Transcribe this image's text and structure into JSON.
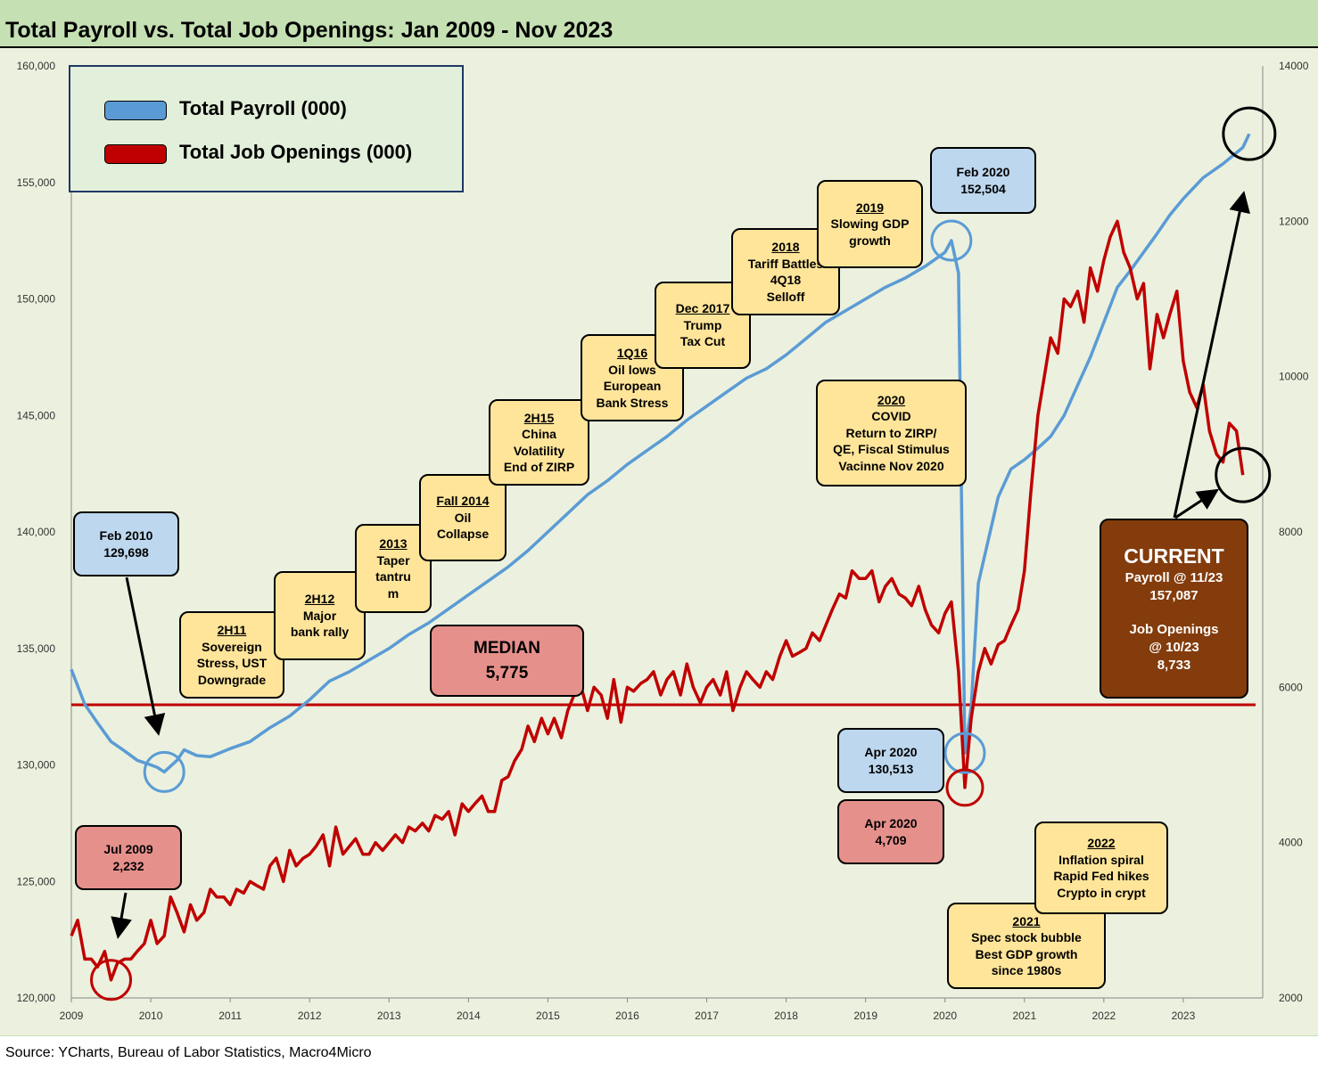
{
  "title": "Total Payroll vs. Total Job Openings: Jan 2009 - Nov 2023",
  "source": "Source: YCharts, Bureau of Labor Statistics, Macro4Micro",
  "colors": {
    "payroll": "#5b9bd5",
    "openings": "#c00000",
    "median": "#c00000",
    "background": "#ebf1de",
    "header": "#c5e0b3"
  },
  "legend": {
    "payroll": "Total Payroll (000)",
    "openings": "Total Job Openings (000)"
  },
  "annotations": {
    "a2h11": {
      "head": "2H11",
      "l1": "Sovereign",
      "l2": "Stress, UST",
      "l3": "Downgrade"
    },
    "a2h12": {
      "head": "2H12",
      "l1": "Major",
      "l2": "bank rally"
    },
    "a2013": {
      "head": "2013",
      "l1": "Taper",
      "l2": "tantru",
      "l3": "m"
    },
    "afall2014": {
      "head": "Fall 2014",
      "l1": "Oil",
      "l2": "Collapse"
    },
    "a2h15": {
      "head": "2H15",
      "l1": "China",
      "l2": "Volatility",
      "l3": "End of ZIRP"
    },
    "a1q16": {
      "head": "1Q16",
      "l1": "Oil lows",
      "l2": "European",
      "l3": "Bank Stress"
    },
    "adec2017": {
      "head": "Dec 2017",
      "l1": "Trump",
      "l2": "Tax Cut"
    },
    "a2018": {
      "head": "2018",
      "l1": "Tariff Battles",
      "l2": "4Q18",
      "l3": "Selloff"
    },
    "a2019": {
      "head": "2019",
      "l1": "Slowing GDP",
      "l2": "growth"
    },
    "a2020": {
      "head": "2020",
      "l1": "COVID",
      "l2": "Return to ZIRP/",
      "l3": "QE, Fiscal Stimulus",
      "l4": "Vacinne Nov 2020"
    },
    "a2021": {
      "head": "2021",
      "l1": "Spec stock bubble",
      "l2": "Best GDP growth",
      "l3": "since 1980s"
    },
    "a2022": {
      "head": "2022",
      "l1": "Inflation spiral",
      "l2": "Rapid Fed hikes",
      "l3": "Crypto in crypt"
    },
    "feb2010": {
      "l1": "Feb 2010",
      "l2": "129,698"
    },
    "jul2009": {
      "l1": "Jul 2009",
      "l2": "2,232"
    },
    "feb2020": {
      "l1": "Feb 2020",
      "l2": "152,504"
    },
    "apr2020p": {
      "l1": "Apr 2020",
      "l2": "130,513"
    },
    "apr2020o": {
      "l1": "Apr 2020",
      "l2": "4,709"
    },
    "median": {
      "l1": "MEDIAN",
      "l2": "5,775"
    },
    "current": {
      "l1": "CURRENT",
      "l2": "Payroll @ 11/23",
      "l3": "157,087",
      "l4": "Job Openings",
      "l5": "@ 10/23",
      "l6": "8,733"
    }
  },
  "chart_data": {
    "type": "line",
    "title": "Total Payroll vs. Total Job Openings: Jan 2009 - Nov 2023",
    "x_range": [
      2009.0,
      2024.0
    ],
    "x_ticks": [
      "2009",
      "2010",
      "2011",
      "2012",
      "2013",
      "2014",
      "2015",
      "2016",
      "2017",
      "2018",
      "2019",
      "2020",
      "2021",
      "2022",
      "2023"
    ],
    "y_left": {
      "range": [
        120000,
        160000
      ],
      "ticks": [
        "120,000",
        "125,000",
        "130,000",
        "135,000",
        "140,000",
        "145,000",
        "150,000",
        "155,000",
        "160,000"
      ]
    },
    "y_right": {
      "range": [
        2000,
        14000
      ],
      "ticks": [
        "2000",
        "4000",
        "6000",
        "8000",
        "10000",
        "12000",
        "14000"
      ]
    },
    "median_openings": 5775,
    "series": [
      {
        "name": "Total Payroll (000)",
        "axis": "left",
        "points": [
          [
            2009.0,
            134100
          ],
          [
            2009.17,
            132600
          ],
          [
            2009.33,
            131800
          ],
          [
            2009.5,
            131000
          ],
          [
            2009.67,
            130600
          ],
          [
            2009.83,
            130200
          ],
          [
            2010.0,
            130000
          ],
          [
            2010.08,
            129900
          ],
          [
            2010.17,
            129700
          ],
          [
            2010.33,
            130200
          ],
          [
            2010.42,
            130650
          ],
          [
            2010.58,
            130400
          ],
          [
            2010.75,
            130350
          ],
          [
            2011.0,
            130700
          ],
          [
            2011.25,
            131000
          ],
          [
            2011.5,
            131600
          ],
          [
            2011.75,
            132100
          ],
          [
            2012.0,
            132800
          ],
          [
            2012.25,
            133600
          ],
          [
            2012.5,
            134000
          ],
          [
            2012.75,
            134500
          ],
          [
            2013.0,
            135000
          ],
          [
            2013.25,
            135600
          ],
          [
            2013.5,
            136100
          ],
          [
            2013.75,
            136700
          ],
          [
            2014.0,
            137300
          ],
          [
            2014.25,
            137900
          ],
          [
            2014.5,
            138500
          ],
          [
            2014.75,
            139200
          ],
          [
            2015.0,
            140000
          ],
          [
            2015.25,
            140800
          ],
          [
            2015.5,
            141600
          ],
          [
            2015.75,
            142200
          ],
          [
            2016.0,
            142900
          ],
          [
            2016.25,
            143500
          ],
          [
            2016.5,
            144100
          ],
          [
            2016.75,
            144800
          ],
          [
            2017.0,
            145400
          ],
          [
            2017.25,
            146000
          ],
          [
            2017.5,
            146600
          ],
          [
            2017.75,
            147000
          ],
          [
            2018.0,
            147600
          ],
          [
            2018.25,
            148300
          ],
          [
            2018.5,
            149000
          ],
          [
            2018.75,
            149500
          ],
          [
            2019.0,
            150000
          ],
          [
            2019.25,
            150500
          ],
          [
            2019.5,
            150900
          ],
          [
            2019.75,
            151400
          ],
          [
            2020.0,
            152000
          ],
          [
            2020.08,
            152504
          ],
          [
            2020.17,
            151100
          ],
          [
            2020.25,
            130513
          ],
          [
            2020.33,
            132500
          ],
          [
            2020.42,
            137800
          ],
          [
            2020.5,
            139000
          ],
          [
            2020.67,
            141500
          ],
          [
            2020.83,
            142700
          ],
          [
            2021.0,
            143100
          ],
          [
            2021.17,
            143600
          ],
          [
            2021.33,
            144100
          ],
          [
            2021.5,
            145000
          ],
          [
            2021.67,
            146300
          ],
          [
            2021.83,
            147500
          ],
          [
            2022.0,
            149000
          ],
          [
            2022.17,
            150500
          ],
          [
            2022.33,
            151200
          ],
          [
            2022.5,
            152000
          ],
          [
            2022.67,
            152800
          ],
          [
            2022.83,
            153600
          ],
          [
            2023.0,
            154300
          ],
          [
            2023.25,
            155200
          ],
          [
            2023.5,
            155800
          ],
          [
            2023.75,
            156500
          ],
          [
            2023.83,
            157087
          ]
        ]
      },
      {
        "name": "Total Job Openings (000)",
        "axis": "right",
        "points": [
          [
            2009.0,
            2800
          ],
          [
            2009.08,
            3000
          ],
          [
            2009.17,
            2500
          ],
          [
            2009.25,
            2500
          ],
          [
            2009.33,
            2400
          ],
          [
            2009.42,
            2600
          ],
          [
            2009.5,
            2232
          ],
          [
            2009.58,
            2450
          ],
          [
            2009.67,
            2500
          ],
          [
            2009.75,
            2500
          ],
          [
            2009.83,
            2600
          ],
          [
            2009.92,
            2700
          ],
          [
            2010.0,
            3000
          ],
          [
            2010.08,
            2700
          ],
          [
            2010.17,
            2800
          ],
          [
            2010.25,
            3300
          ],
          [
            2010.33,
            3100
          ],
          [
            2010.42,
            2850
          ],
          [
            2010.5,
            3200
          ],
          [
            2010.58,
            3000
          ],
          [
            2010.67,
            3100
          ],
          [
            2010.75,
            3400
          ],
          [
            2010.83,
            3300
          ],
          [
            2010.92,
            3300
          ],
          [
            2011.0,
            3200
          ],
          [
            2011.08,
            3400
          ],
          [
            2011.17,
            3350
          ],
          [
            2011.25,
            3500
          ],
          [
            2011.33,
            3450
          ],
          [
            2011.42,
            3400
          ],
          [
            2011.5,
            3700
          ],
          [
            2011.58,
            3800
          ],
          [
            2011.67,
            3500
          ],
          [
            2011.75,
            3900
          ],
          [
            2011.83,
            3700
          ],
          [
            2011.92,
            3800
          ],
          [
            2012.0,
            3850
          ],
          [
            2012.08,
            3950
          ],
          [
            2012.17,
            4100
          ],
          [
            2012.25,
            3700
          ],
          [
            2012.33,
            4200
          ],
          [
            2012.42,
            3850
          ],
          [
            2012.5,
            3950
          ],
          [
            2012.58,
            4050
          ],
          [
            2012.67,
            3850
          ],
          [
            2012.75,
            3850
          ],
          [
            2012.83,
            4000
          ],
          [
            2012.92,
            3900
          ],
          [
            2013.0,
            4000
          ],
          [
            2013.08,
            4100
          ],
          [
            2013.17,
            4000
          ],
          [
            2013.25,
            4200
          ],
          [
            2013.33,
            4150
          ],
          [
            2013.42,
            4250
          ],
          [
            2013.5,
            4150
          ],
          [
            2013.58,
            4350
          ],
          [
            2013.67,
            4300
          ],
          [
            2013.75,
            4400
          ],
          [
            2013.83,
            4100
          ],
          [
            2013.92,
            4500
          ],
          [
            2014.0,
            4400
          ],
          [
            2014.08,
            4500
          ],
          [
            2014.17,
            4600
          ],
          [
            2014.25,
            4400
          ],
          [
            2014.33,
            4400
          ],
          [
            2014.42,
            4800
          ],
          [
            2014.5,
            4850
          ],
          [
            2014.58,
            5050
          ],
          [
            2014.67,
            5200
          ],
          [
            2014.75,
            5500
          ],
          [
            2014.83,
            5300
          ],
          [
            2014.92,
            5600
          ],
          [
            2015.0,
            5400
          ],
          [
            2015.08,
            5600
          ],
          [
            2015.17,
            5350
          ],
          [
            2015.25,
            5700
          ],
          [
            2015.33,
            5900
          ],
          [
            2015.42,
            6000
          ],
          [
            2015.5,
            5700
          ],
          [
            2015.58,
            6000
          ],
          [
            2015.67,
            5900
          ],
          [
            2015.75,
            5600
          ],
          [
            2015.83,
            6100
          ],
          [
            2015.92,
            5550
          ],
          [
            2016.0,
            6000
          ],
          [
            2016.08,
            5950
          ],
          [
            2016.17,
            6050
          ],
          [
            2016.25,
            6100
          ],
          [
            2016.33,
            6200
          ],
          [
            2016.42,
            5900
          ],
          [
            2016.5,
            6100
          ],
          [
            2016.58,
            6200
          ],
          [
            2016.67,
            5900
          ],
          [
            2016.75,
            6300
          ],
          [
            2016.83,
            6000
          ],
          [
            2016.92,
            5800
          ],
          [
            2017.0,
            6000
          ],
          [
            2017.08,
            6100
          ],
          [
            2017.17,
            5900
          ],
          [
            2017.25,
            6200
          ],
          [
            2017.33,
            5700
          ],
          [
            2017.42,
            6000
          ],
          [
            2017.5,
            6200
          ],
          [
            2017.58,
            6100
          ],
          [
            2017.67,
            6000
          ],
          [
            2017.75,
            6200
          ],
          [
            2017.83,
            6100
          ],
          [
            2017.92,
            6400
          ],
          [
            2018.0,
            6600
          ],
          [
            2018.08,
            6400
          ],
          [
            2018.17,
            6450
          ],
          [
            2018.25,
            6500
          ],
          [
            2018.33,
            6700
          ],
          [
            2018.42,
            6600
          ],
          [
            2018.5,
            6800
          ],
          [
            2018.58,
            7000
          ],
          [
            2018.67,
            7200
          ],
          [
            2018.75,
            7150
          ],
          [
            2018.83,
            7500
          ],
          [
            2018.92,
            7400
          ],
          [
            2019.0,
            7400
          ],
          [
            2019.08,
            7500
          ],
          [
            2019.17,
            7100
          ],
          [
            2019.25,
            7300
          ],
          [
            2019.33,
            7400
          ],
          [
            2019.42,
            7200
          ],
          [
            2019.5,
            7150
          ],
          [
            2019.58,
            7050
          ],
          [
            2019.67,
            7300
          ],
          [
            2019.75,
            7000
          ],
          [
            2019.83,
            6800
          ],
          [
            2019.92,
            6700
          ],
          [
            2020.0,
            6950
          ],
          [
            2020.08,
            7100
          ],
          [
            2020.17,
            6200
          ],
          [
            2020.25,
            4709
          ],
          [
            2020.33,
            5600
          ],
          [
            2020.42,
            6200
          ],
          [
            2020.5,
            6500
          ],
          [
            2020.58,
            6300
          ],
          [
            2020.67,
            6550
          ],
          [
            2020.75,
            6600
          ],
          [
            2020.83,
            6800
          ],
          [
            2020.92,
            7000
          ],
          [
            2021.0,
            7500
          ],
          [
            2021.08,
            8500
          ],
          [
            2021.17,
            9500
          ],
          [
            2021.25,
            10000
          ],
          [
            2021.33,
            10500
          ],
          [
            2021.42,
            10300
          ],
          [
            2021.5,
            11000
          ],
          [
            2021.58,
            10900
          ],
          [
            2021.67,
            11100
          ],
          [
            2021.75,
            10700
          ],
          [
            2021.83,
            11400
          ],
          [
            2021.92,
            11100
          ],
          [
            2022.0,
            11500
          ],
          [
            2022.08,
            11800
          ],
          [
            2022.17,
            12000
          ],
          [
            2022.25,
            11600
          ],
          [
            2022.33,
            11400
          ],
          [
            2022.42,
            11000
          ],
          [
            2022.5,
            11200
          ],
          [
            2022.58,
            10100
          ],
          [
            2022.67,
            10800
          ],
          [
            2022.75,
            10500
          ],
          [
            2022.83,
            10800
          ],
          [
            2022.92,
            11100
          ],
          [
            2023.0,
            10200
          ],
          [
            2023.08,
            9800
          ],
          [
            2023.17,
            9600
          ],
          [
            2023.25,
            9900
          ],
          [
            2023.33,
            9300
          ],
          [
            2023.42,
            9000
          ],
          [
            2023.5,
            8900
          ],
          [
            2023.58,
            9400
          ],
          [
            2023.67,
            9300
          ],
          [
            2023.75,
            8733
          ]
        ]
      }
    ]
  }
}
